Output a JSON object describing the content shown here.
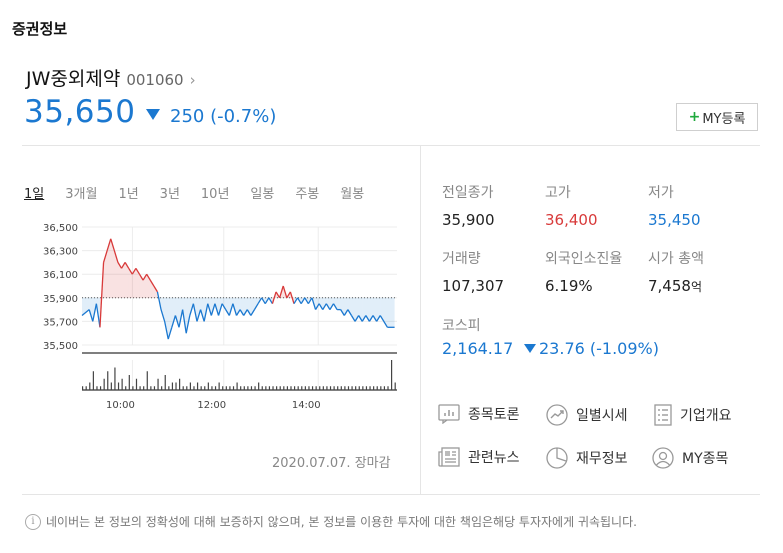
{
  "section_title": "증권정보",
  "stock": {
    "name": "JW중외제약",
    "code": "001060",
    "price": "35,650",
    "change": "250 (-0.7%)",
    "my_button": "MY등록"
  },
  "tabs": [
    "1일",
    "3개월",
    "1년",
    "3년",
    "10년",
    "일봉",
    "주봉",
    "월봉"
  ],
  "chart_data": {
    "type": "line",
    "y_ticks": [
      "36,500",
      "36,300",
      "36,100",
      "35,900",
      "35,700",
      "35,500"
    ],
    "x_ticks": [
      "10:00",
      "12:00",
      "14:00"
    ],
    "reference_price": 35900,
    "ylim": [
      35450,
      36550
    ],
    "series": [
      {
        "points": [
          [
            0,
            35750
          ],
          [
            2,
            35800
          ],
          [
            3,
            35700
          ],
          [
            4,
            35850
          ],
          [
            5,
            35650
          ],
          [
            6,
            36200
          ],
          [
            7,
            36300
          ],
          [
            8,
            36400
          ],
          [
            9,
            36300
          ],
          [
            10,
            36200
          ],
          [
            11,
            36150
          ],
          [
            12,
            36200
          ],
          [
            13,
            36150
          ],
          [
            14,
            36100
          ],
          [
            15,
            36150
          ],
          [
            16,
            36100
          ],
          [
            17,
            36050
          ],
          [
            18,
            36100
          ],
          [
            19,
            36050
          ],
          [
            20,
            36000
          ],
          [
            21,
            35950
          ],
          [
            22,
            35800
          ],
          [
            23,
            35700
          ],
          [
            24,
            35550
          ],
          [
            25,
            35650
          ],
          [
            26,
            35750
          ],
          [
            27,
            35650
          ],
          [
            28,
            35800
          ],
          [
            29,
            35600
          ],
          [
            30,
            35750
          ],
          [
            31,
            35850
          ],
          [
            32,
            35700
          ],
          [
            33,
            35800
          ],
          [
            34,
            35700
          ],
          [
            35,
            35850
          ],
          [
            36,
            35750
          ],
          [
            37,
            35850
          ],
          [
            38,
            35750
          ],
          [
            39,
            35850
          ],
          [
            40,
            35800
          ],
          [
            41,
            35750
          ],
          [
            42,
            35850
          ],
          [
            43,
            35750
          ],
          [
            44,
            35800
          ],
          [
            45,
            35750
          ],
          [
            46,
            35800
          ],
          [
            47,
            35750
          ],
          [
            48,
            35800
          ],
          [
            49,
            35850
          ],
          [
            50,
            35900
          ],
          [
            51,
            35850
          ],
          [
            52,
            35900
          ],
          [
            53,
            35850
          ],
          [
            54,
            35950
          ],
          [
            55,
            35900
          ],
          [
            56,
            36000
          ],
          [
            57,
            35900
          ],
          [
            58,
            35950
          ],
          [
            59,
            35850
          ],
          [
            60,
            35900
          ],
          [
            61,
            35850
          ],
          [
            62,
            35900
          ],
          [
            63,
            35850
          ],
          [
            64,
            35900
          ],
          [
            65,
            35800
          ],
          [
            66,
            35850
          ],
          [
            67,
            35800
          ],
          [
            68,
            35850
          ],
          [
            69,
            35800
          ],
          [
            70,
            35850
          ],
          [
            71,
            35800
          ],
          [
            72,
            35800
          ],
          [
            73,
            35750
          ],
          [
            74,
            35800
          ],
          [
            75,
            35750
          ],
          [
            76,
            35700
          ],
          [
            77,
            35750
          ],
          [
            78,
            35700
          ],
          [
            79,
            35750
          ],
          [
            80,
            35700
          ],
          [
            81,
            35750
          ],
          [
            82,
            35700
          ],
          [
            83,
            35750
          ],
          [
            84,
            35700
          ],
          [
            85,
            35650
          ],
          [
            86,
            35650
          ],
          [
            87,
            35650
          ]
        ],
        "volume": [
          1,
          1,
          2,
          5,
          1,
          1,
          3,
          5,
          2,
          6,
          2,
          3,
          1,
          4,
          1,
          3,
          1,
          1,
          5,
          1,
          1,
          3,
          1,
          4,
          1,
          2,
          2,
          3,
          1,
          1,
          2,
          1,
          2,
          1,
          1,
          2,
          1,
          1,
          2,
          1,
          1,
          1,
          1,
          2,
          1,
          1,
          1,
          1,
          1,
          2,
          1,
          1,
          1,
          1,
          1,
          1,
          1,
          1,
          1,
          1,
          1,
          1,
          1,
          1,
          1,
          1,
          1,
          1,
          1,
          1,
          1,
          1,
          1,
          1,
          1,
          1,
          1,
          1,
          1,
          1,
          1,
          1,
          1,
          1,
          1,
          1,
          8,
          2
        ]
      }
    ]
  },
  "stats": {
    "prev_close_label": "전일종가",
    "prev_close": "35,900",
    "high_label": "고가",
    "high": "36,400",
    "low_label": "저가",
    "low": "35,450",
    "volume_label": "거래량",
    "volume": "107,307",
    "foreign_label": "외국인소진율",
    "foreign": "6.19%",
    "mcap_label": "시가 총액",
    "mcap": "7,458",
    "mcap_unit": "억"
  },
  "kospi": {
    "label": "코스피",
    "value": "2,164.17",
    "change": "23.76 (-1.09%)"
  },
  "links": [
    "종목토론",
    "일별시세",
    "기업개요",
    "관련뉴스",
    "재무정보",
    "MY종목"
  ],
  "date_text": "2020.07.07. 장마감",
  "notice": "네이버는 본 정보의 정확성에 대해 보증하지 않으며, 본 정보를 이용한 투자에 대한 책임은해당 투자자에게 귀속됩니다.",
  "colors": {
    "up": "#d83a3a",
    "down": "#1b78d0",
    "positive_accent": "#1fa93c"
  }
}
